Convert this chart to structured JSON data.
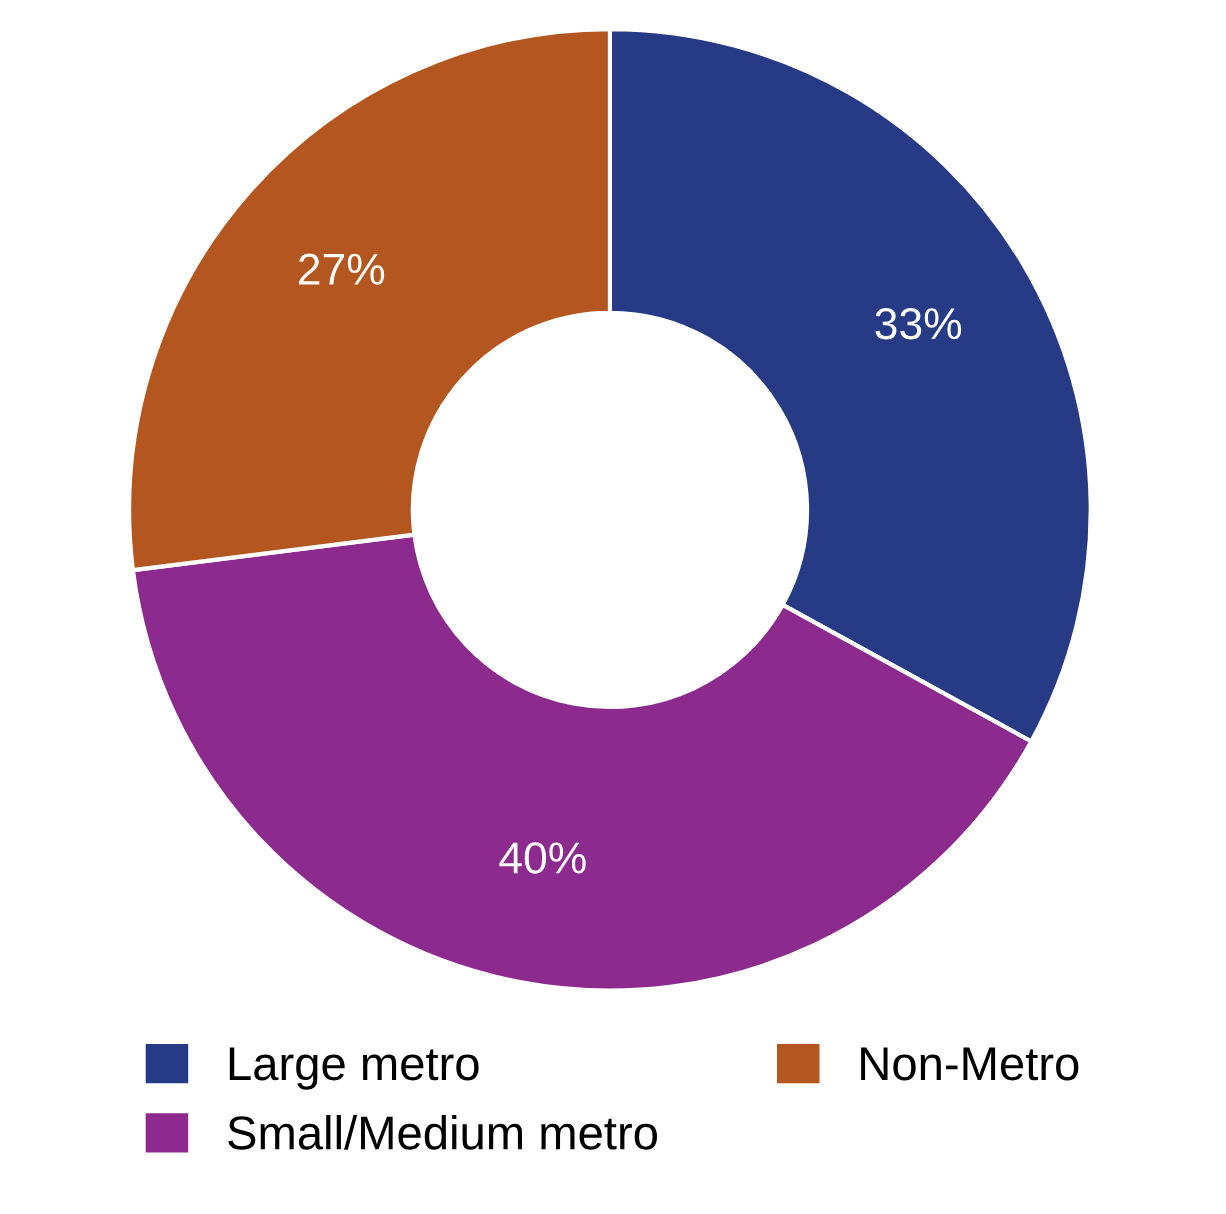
{
  "chart_data": {
    "type": "donut",
    "categories": [
      "Large metro",
      "Small/Medium metro",
      "Non-Metro"
    ],
    "values": [
      33,
      40,
      27
    ],
    "colors": [
      "#263a86",
      "#8c2a8e",
      "#b4561f"
    ],
    "value_labels": [
      "33%",
      "40%",
      "27%"
    ],
    "legend": "bottom"
  }
}
